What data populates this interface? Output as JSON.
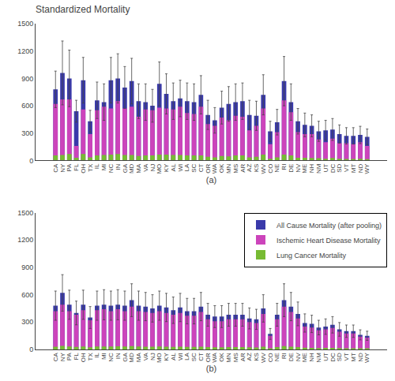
{
  "chart_data": [
    {
      "type": "bar",
      "title": "Standardized Mortality",
      "xlabel": "(a)",
      "categories": [
        "CA",
        "NY",
        "PA",
        "FL",
        "OH",
        "TX",
        "IL",
        "MI",
        "NC",
        "IN",
        "GA",
        "MD",
        "MA",
        "VA",
        "NJ",
        "MO",
        "KY",
        "AL",
        "WI",
        "LA",
        "SC",
        "CT",
        "OR",
        "WA",
        "OK",
        "MN",
        "MS",
        "AR",
        "AZ",
        "KS",
        "WV",
        "CO",
        "NE",
        "RI",
        "DE",
        "NV",
        "ME",
        "NH",
        "NM",
        "UT",
        "DC",
        "SD",
        "VT",
        "MT",
        "ND",
        "WY"
      ],
      "series": [
        {
          "name": "All Cause Mortality (after pooling)",
          "color": "#3a3aaa",
          "values": [
            780,
            960,
            900,
            540,
            880,
            430,
            660,
            640,
            880,
            900,
            800,
            870,
            650,
            640,
            600,
            840,
            730,
            650,
            680,
            650,
            640,
            720,
            500,
            440,
            580,
            620,
            640,
            650,
            500,
            490,
            720,
            320,
            420,
            870,
            640,
            430,
            390,
            380,
            320,
            330,
            340,
            290,
            270,
            270,
            280,
            260
          ],
          "error": [
            200,
            350,
            310,
            120,
            250,
            120,
            200,
            200,
            250,
            270,
            230,
            250,
            190,
            200,
            180,
            240,
            220,
            200,
            200,
            200,
            200,
            210,
            160,
            140,
            180,
            190,
            200,
            200,
            160,
            160,
            220,
            110,
            140,
            270,
            200,
            140,
            130,
            120,
            110,
            110,
            120,
            100,
            90,
            90,
            95,
            85
          ],
          "error_color": "#444444"
        },
        {
          "name": "Ischemic Heart Disease Mortality",
          "color": "#cc44bb",
          "values": [
            620,
            670,
            670,
            160,
            560,
            290,
            550,
            590,
            570,
            650,
            570,
            590,
            480,
            560,
            550,
            580,
            570,
            560,
            590,
            520,
            510,
            590,
            400,
            380,
            470,
            440,
            490,
            480,
            330,
            380,
            570,
            180,
            310,
            660,
            530,
            310,
            290,
            290,
            230,
            200,
            240,
            190,
            190,
            180,
            200,
            160
          ]
        },
        {
          "name": "Lung Cancer Mortality",
          "color": "#77bb33",
          "values": [
            55,
            60,
            70,
            30,
            70,
            35,
            55,
            60,
            65,
            70,
            60,
            60,
            50,
            55,
            55,
            65,
            65,
            60,
            60,
            55,
            55,
            55,
            40,
            35,
            50,
            45,
            55,
            55,
            35,
            40,
            65,
            20,
            35,
            65,
            55,
            30,
            30,
            28,
            25,
            20,
            28,
            20,
            18,
            18,
            20,
            15
          ]
        }
      ],
      "ylim": [
        0,
        1500
      ],
      "yticks": [
        0,
        300,
        600,
        900,
        1200,
        1500
      ],
      "grid": false
    },
    {
      "type": "bar",
      "xlabel": "(b)",
      "categories": [
        "CA",
        "NY",
        "PA",
        "FL",
        "OH",
        "TX",
        "IL",
        "MI",
        "NC",
        "IN",
        "GA",
        "MD",
        "MA",
        "VA",
        "NJ",
        "MO",
        "KY",
        "AL",
        "WI",
        "LA",
        "SC",
        "CT",
        "OR",
        "WA",
        "OK",
        "MN",
        "MS",
        "AR",
        "AZ",
        "KS",
        "WV",
        "CO",
        "NE",
        "RI",
        "DE",
        "NV",
        "ME",
        "NH",
        "NM",
        "UT",
        "DC",
        "SD",
        "VT",
        "MT",
        "ND",
        "WY"
      ],
      "series": [
        {
          "name": "All Cause Mortality (after pooling)",
          "color": "#3a3aaa",
          "values": [
            480,
            620,
            490,
            400,
            490,
            350,
            480,
            490,
            480,
            490,
            480,
            540,
            480,
            470,
            450,
            480,
            460,
            430,
            460,
            420,
            420,
            470,
            380,
            360,
            360,
            380,
            380,
            380,
            340,
            330,
            450,
            170,
            380,
            540,
            470,
            390,
            290,
            280,
            240,
            250,
            270,
            220,
            200,
            200,
            160,
            150
          ],
          "error": [
            160,
            200,
            160,
            130,
            160,
            120,
            160,
            165,
            160,
            165,
            160,
            180,
            160,
            155,
            150,
            160,
            155,
            145,
            155,
            140,
            140,
            155,
            125,
            120,
            120,
            125,
            125,
            125,
            115,
            110,
            150,
            60,
            125,
            180,
            155,
            130,
            100,
            95,
            80,
            85,
            90,
            75,
            68,
            68,
            55,
            50
          ],
          "error_color": "#444444"
        },
        {
          "name": "Ischemic Heart Disease Mortality",
          "color": "#cc44bb",
          "values": [
            420,
            490,
            420,
            380,
            430,
            320,
            430,
            440,
            420,
            440,
            420,
            470,
            420,
            410,
            400,
            420,
            400,
            380,
            400,
            370,
            370,
            410,
            330,
            310,
            310,
            330,
            330,
            330,
            300,
            290,
            390,
            150,
            330,
            470,
            410,
            340,
            250,
            240,
            210,
            220,
            235,
            195,
            175,
            175,
            140,
            130
          ]
        },
        {
          "name": "Lung Cancer Mortality",
          "color": "#77bb33",
          "values": [
            30,
            38,
            32,
            28,
            33,
            23,
            32,
            33,
            32,
            34,
            32,
            36,
            32,
            31,
            31,
            32,
            31,
            29,
            31,
            28,
            28,
            31,
            25,
            24,
            24,
            25,
            25,
            25,
            23,
            22,
            30,
            12,
            25,
            36,
            31,
            26,
            19,
            18,
            16,
            17,
            18,
            15,
            14,
            13,
            11,
            10
          ]
        }
      ],
      "ylim": [
        0,
        1500
      ],
      "yticks": [
        0,
        300,
        600,
        900,
        1200,
        1500
      ],
      "grid": false,
      "legend": "upper right"
    }
  ]
}
